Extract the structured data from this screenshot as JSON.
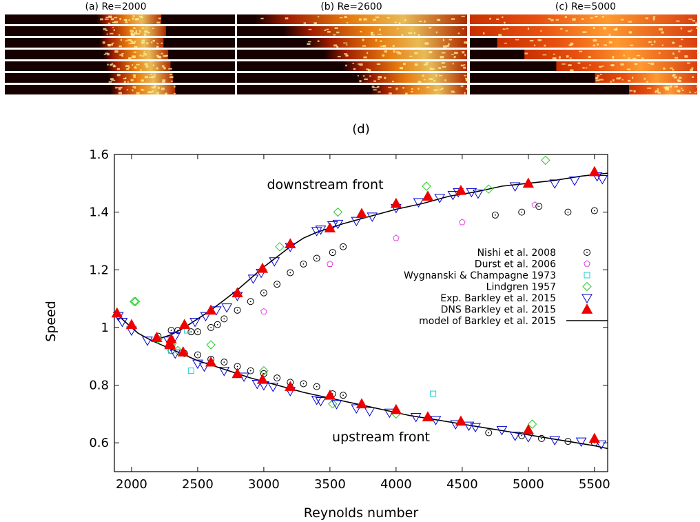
{
  "panels": [
    {
      "title": "(a) Re=2000",
      "front_fraction": [
        0.4,
        0.42,
        0.41,
        0.43,
        0.44,
        0.45,
        0.46
      ]
    },
    {
      "title": "(b) Re=2600",
      "front_fraction": [
        0.08,
        0.2,
        0.3,
        0.38,
        0.46,
        0.52,
        0.58
      ]
    },
    {
      "title": "(c) Re=5000",
      "front_fraction": [
        0.0,
        0.0,
        0.12,
        0.24,
        0.38,
        0.55,
        0.7
      ]
    }
  ],
  "chart_data": {
    "type": "scatter",
    "title": "(d)",
    "xlabel": "Reynolds number",
    "ylabel": "Speed",
    "xlim": [
      1870,
      5600
    ],
    "ylim": [
      0.5,
      1.6
    ],
    "xticks": [
      2000,
      2500,
      3000,
      3500,
      4000,
      4500,
      5000,
      5500
    ],
    "yticks": [
      0.6,
      0.8,
      1,
      1.2,
      1.4,
      1.6
    ],
    "grid": false,
    "legend_position": "right",
    "annotations": [
      "downstream front",
      "upstream front"
    ],
    "series": [
      {
        "name": "Nishi et al. 2008",
        "marker": "circle-dot",
        "color": "#000000",
        "points": [
          [
            2200,
            0.97
          ],
          [
            2300,
            0.99
          ],
          [
            2350,
            0.99
          ],
          [
            2450,
            0.985
          ],
          [
            2500,
            0.985
          ],
          [
            2600,
            1.0
          ],
          [
            2650,
            1.01
          ],
          [
            2700,
            1.03
          ],
          [
            2800,
            1.06
          ],
          [
            2900,
            1.09
          ],
          [
            3000,
            1.12
          ],
          [
            3100,
            1.15
          ],
          [
            3200,
            1.19
          ],
          [
            3300,
            1.22
          ],
          [
            3400,
            1.24
          ],
          [
            3520,
            1.26
          ],
          [
            3600,
            1.28
          ],
          [
            4750,
            1.39
          ],
          [
            4950,
            1.4
          ],
          [
            5080,
            1.42
          ],
          [
            5300,
            1.4
          ],
          [
            5500,
            1.405
          ],
          [
            2300,
            0.92
          ],
          [
            2400,
            0.91
          ],
          [
            2500,
            0.905
          ],
          [
            2600,
            0.89
          ],
          [
            2700,
            0.88
          ],
          [
            2800,
            0.865
          ],
          [
            2900,
            0.85
          ],
          [
            3000,
            0.84
          ],
          [
            3100,
            0.825
          ],
          [
            3200,
            0.81
          ],
          [
            3300,
            0.805
          ],
          [
            3400,
            0.795
          ],
          [
            3520,
            0.77
          ],
          [
            3600,
            0.765
          ],
          [
            4700,
            0.635
          ],
          [
            4950,
            0.625
          ],
          [
            5100,
            0.615
          ],
          [
            5300,
            0.605
          ],
          [
            5500,
            0.6
          ]
        ]
      },
      {
        "name": "Durst et al. 2006",
        "marker": "pentagon",
        "color": "#dd44dd",
        "points": [
          [
            3000,
            1.055
          ],
          [
            3500,
            1.22
          ],
          [
            4000,
            1.31
          ],
          [
            4500,
            1.365
          ],
          [
            5050,
            1.425
          ]
        ]
      },
      {
        "name": "Wygnanski & Champagne 1973",
        "marker": "square",
        "color": "#22cccc",
        "points": [
          [
            2300,
            0.92
          ],
          [
            2420,
            0.99
          ],
          [
            2450,
            0.85
          ],
          [
            3200,
            0.79
          ],
          [
            4280,
            0.77
          ]
        ]
      },
      {
        "name": "Lindgren 1957",
        "marker": "diamond",
        "color": "#22cc22",
        "points": [
          [
            2020,
            1.09
          ],
          [
            2030,
            1.09
          ],
          [
            2200,
            0.96
          ],
          [
            2600,
            0.94
          ],
          [
            3120,
            1.28
          ],
          [
            3560,
            1.4
          ],
          [
            4230,
            1.49
          ],
          [
            4700,
            1.48
          ],
          [
            5130,
            1.58
          ],
          [
            2300,
            0.94
          ],
          [
            2350,
            0.92
          ],
          [
            3000,
            0.85
          ],
          [
            3520,
            0.735
          ],
          [
            4000,
            0.7
          ],
          [
            5030,
            0.665
          ]
        ]
      },
      {
        "name": "Exp. Barkley et al. 2015",
        "marker": "triangle-down",
        "color": "#0000cc",
        "points": [
          [
            1900,
            1.04
          ],
          [
            1930,
            1.02
          ],
          [
            2000,
            0.99
          ],
          [
            2120,
            0.955
          ],
          [
            2280,
            0.955
          ],
          [
            2330,
            0.97
          ],
          [
            2480,
            1.02
          ],
          [
            2560,
            1.04
          ],
          [
            2640,
            1.06
          ],
          [
            2720,
            1.07
          ],
          [
            2800,
            1.11
          ],
          [
            2920,
            1.17
          ],
          [
            2980,
            1.19
          ],
          [
            3080,
            1.23
          ],
          [
            3200,
            1.28
          ],
          [
            3400,
            1.335
          ],
          [
            3430,
            1.34
          ],
          [
            3520,
            1.355
          ],
          [
            3560,
            1.36
          ],
          [
            3700,
            1.37
          ],
          [
            3820,
            1.385
          ],
          [
            4000,
            1.415
          ],
          [
            4170,
            1.435
          ],
          [
            4330,
            1.45
          ],
          [
            4430,
            1.46
          ],
          [
            4470,
            1.47
          ],
          [
            4570,
            1.47
          ],
          [
            4620,
            1.465
          ],
          [
            4900,
            1.49
          ],
          [
            5200,
            1.5
          ],
          [
            5350,
            1.51
          ],
          [
            5520,
            1.525
          ],
          [
            5560,
            1.515
          ],
          [
            2330,
            0.91
          ],
          [
            2500,
            0.875
          ],
          [
            2550,
            0.865
          ],
          [
            2700,
            0.85
          ],
          [
            2850,
            0.83
          ],
          [
            2950,
            0.805
          ],
          [
            3000,
            0.8
          ],
          [
            3070,
            0.795
          ],
          [
            3200,
            0.78
          ],
          [
            3400,
            0.75
          ],
          [
            3430,
            0.745
          ],
          [
            3550,
            0.735
          ],
          [
            3700,
            0.72
          ],
          [
            3800,
            0.71
          ],
          [
            3950,
            0.705
          ],
          [
            4150,
            0.69
          ],
          [
            4300,
            0.68
          ],
          [
            4450,
            0.665
          ],
          [
            4550,
            0.66
          ],
          [
            4600,
            0.655
          ],
          [
            4800,
            0.645
          ],
          [
            4900,
            0.625
          ],
          [
            5000,
            0.62
          ],
          [
            5200,
            0.61
          ],
          [
            5400,
            0.605
          ],
          [
            5550,
            0.595
          ]
        ]
      },
      {
        "name": "DNS Barkley et al. 2015",
        "marker": "triangle-up-filled",
        "color": "#ee0000",
        "points": [
          [
            1890,
            1.05
          ],
          [
            2000,
            1.01
          ],
          [
            2190,
            0.965
          ],
          [
            2290,
            0.945
          ],
          [
            2300,
            0.96
          ],
          [
            2400,
            1.01
          ],
          [
            2600,
            1.06
          ],
          [
            2800,
            1.12
          ],
          [
            2990,
            1.205
          ],
          [
            3200,
            1.29
          ],
          [
            3500,
            1.345
          ],
          [
            3740,
            1.395
          ],
          [
            4000,
            1.43
          ],
          [
            4240,
            1.455
          ],
          [
            4490,
            1.475
          ],
          [
            5000,
            1.5
          ],
          [
            5500,
            1.54
          ],
          [
            2290,
            0.94
          ],
          [
            2390,
            0.915
          ],
          [
            2600,
            0.88
          ],
          [
            2800,
            0.84
          ],
          [
            2990,
            0.82
          ],
          [
            3200,
            0.795
          ],
          [
            3500,
            0.765
          ],
          [
            3740,
            0.735
          ],
          [
            4000,
            0.715
          ],
          [
            4240,
            0.69
          ],
          [
            4490,
            0.675
          ],
          [
            5000,
            0.645
          ],
          [
            5500,
            0.615
          ]
        ]
      },
      {
        "name": "model of Barkley et al. 2015",
        "marker": "line",
        "color": "#000000",
        "points_upper": [
          [
            2150,
            0.955
          ],
          [
            2200,
            0.96
          ],
          [
            2300,
            0.975
          ],
          [
            2400,
            1.0
          ],
          [
            2500,
            1.03
          ],
          [
            2600,
            1.06
          ],
          [
            2700,
            1.095
          ],
          [
            2800,
            1.13
          ],
          [
            2900,
            1.17
          ],
          [
            3000,
            1.21
          ],
          [
            3100,
            1.245
          ],
          [
            3200,
            1.28
          ],
          [
            3300,
            1.31
          ],
          [
            3400,
            1.33
          ],
          [
            3500,
            1.345
          ],
          [
            3600,
            1.36
          ],
          [
            3800,
            1.385
          ],
          [
            4000,
            1.41
          ],
          [
            4200,
            1.43
          ],
          [
            4400,
            1.455
          ],
          [
            4600,
            1.47
          ],
          [
            4800,
            1.49
          ],
          [
            5000,
            1.5
          ],
          [
            5200,
            1.51
          ],
          [
            5400,
            1.525
          ],
          [
            5600,
            1.535
          ]
        ],
        "points_lower": [
          [
            1880,
            1.05
          ],
          [
            1950,
            1.02
          ],
          [
            2050,
            0.98
          ],
          [
            2150,
            0.955
          ],
          [
            2300,
            0.925
          ],
          [
            2500,
            0.885
          ],
          [
            2700,
            0.855
          ],
          [
            2900,
            0.825
          ],
          [
            3100,
            0.8
          ],
          [
            3300,
            0.775
          ],
          [
            3500,
            0.755
          ],
          [
            3700,
            0.735
          ],
          [
            3900,
            0.715
          ],
          [
            4100,
            0.695
          ],
          [
            4300,
            0.68
          ],
          [
            4500,
            0.665
          ],
          [
            4700,
            0.65
          ],
          [
            4900,
            0.635
          ],
          [
            5100,
            0.62
          ],
          [
            5300,
            0.605
          ],
          [
            5500,
            0.59
          ],
          [
            5600,
            0.58
          ]
        ]
      }
    ]
  }
}
